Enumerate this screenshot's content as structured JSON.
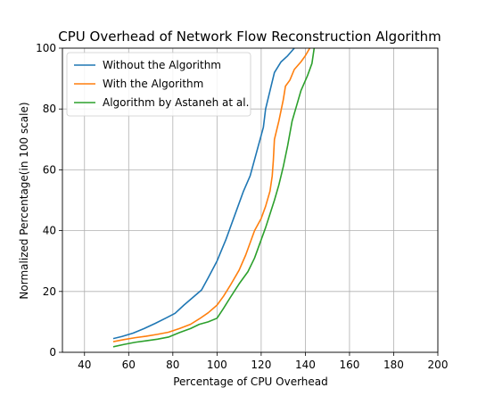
{
  "chart_data": {
    "type": "line",
    "title": "CPU Overhead of Network Flow Reconstruction Algorithm",
    "xlabel": "Percentage of CPU Overhead",
    "ylabel": "Normalized Percentage(in 100 scale)",
    "xlim": [
      30,
      200
    ],
    "ylim": [
      0,
      100
    ],
    "xticks": [
      40,
      60,
      80,
      100,
      120,
      140,
      160,
      180,
      200
    ],
    "yticks": [
      0,
      20,
      40,
      60,
      80,
      100
    ],
    "grid": true,
    "legend_position": "upper-left",
    "series": [
      {
        "name": "Without the Algorithm",
        "color": "#1f77b4",
        "points": [
          [
            53,
            4.5
          ],
          [
            57,
            5.2
          ],
          [
            62,
            6.3
          ],
          [
            67,
            7.8
          ],
          [
            72,
            9.5
          ],
          [
            77,
            11.3
          ],
          [
            81,
            12.8
          ],
          [
            85,
            15.5
          ],
          [
            89,
            18
          ],
          [
            93,
            20.5
          ],
          [
            96,
            24.5
          ],
          [
            100,
            30
          ],
          [
            104,
            37
          ],
          [
            108,
            45
          ],
          [
            112,
            53
          ],
          [
            115,
            58
          ],
          [
            118,
            66
          ],
          [
            121,
            74
          ],
          [
            122,
            80
          ],
          [
            124,
            86
          ],
          [
            126,
            92
          ],
          [
            129,
            95.5
          ],
          [
            132,
            97.5
          ],
          [
            135,
            100
          ]
        ]
      },
      {
        "name": "With the Algorithm",
        "color": "#ff7f0e",
        "points": [
          [
            53,
            3.5
          ],
          [
            58,
            4.2
          ],
          [
            63,
            4.8
          ],
          [
            68,
            5.3
          ],
          [
            73,
            5.9
          ],
          [
            78,
            6.6
          ],
          [
            83,
            7.8
          ],
          [
            88,
            9.2
          ],
          [
            92,
            11
          ],
          [
            96,
            13
          ],
          [
            100,
            15.5
          ],
          [
            103,
            18.5
          ],
          [
            106,
            22
          ],
          [
            110,
            27
          ],
          [
            113,
            32
          ],
          [
            115,
            36
          ],
          [
            117,
            40
          ],
          [
            120,
            44
          ],
          [
            122,
            48
          ],
          [
            124,
            53
          ],
          [
            125,
            58
          ],
          [
            125.5,
            63
          ],
          [
            126,
            70
          ],
          [
            128,
            76
          ],
          [
            130,
            83
          ],
          [
            131,
            87.5
          ],
          [
            133,
            89.5
          ],
          [
            135,
            93
          ],
          [
            138,
            95.5
          ],
          [
            140,
            97.5
          ],
          [
            142,
            100
          ]
        ]
      },
      {
        "name": "Algorithm by Astaneh at al.",
        "color": "#2ca02c",
        "points": [
          [
            53,
            1.8
          ],
          [
            58,
            2.6
          ],
          [
            63,
            3.3
          ],
          [
            68,
            3.8
          ],
          [
            73,
            4.3
          ],
          [
            78,
            5
          ],
          [
            83,
            6.5
          ],
          [
            88,
            7.8
          ],
          [
            92,
            9.2
          ],
          [
            96,
            10
          ],
          [
            100,
            11.2
          ],
          [
            103,
            14.5
          ],
          [
            106,
            18
          ],
          [
            110,
            22.5
          ],
          [
            114,
            26.5
          ],
          [
            117,
            31
          ],
          [
            120,
            37
          ],
          [
            122,
            41
          ],
          [
            124,
            45.5
          ],
          [
            126,
            50
          ],
          [
            128,
            55
          ],
          [
            130,
            61
          ],
          [
            132,
            68
          ],
          [
            134,
            76
          ],
          [
            136,
            81
          ],
          [
            138,
            86
          ],
          [
            141,
            91
          ],
          [
            143,
            95
          ],
          [
            144,
            100
          ]
        ]
      }
    ]
  }
}
